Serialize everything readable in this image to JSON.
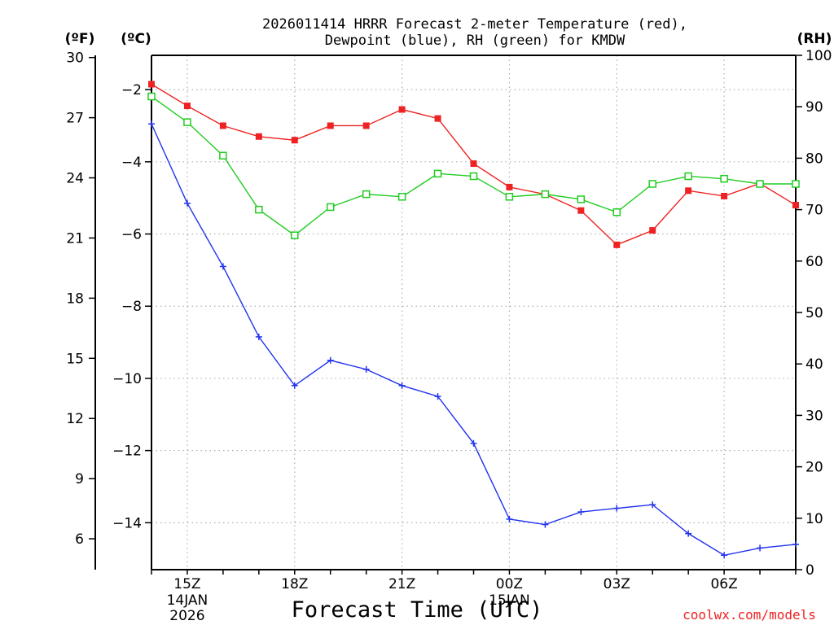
{
  "chart_data": {
    "type": "line",
    "title": [
      "2026011414 HRRR Forecast 2-meter Temperature (red),",
      "Dewpoint (blue), RH (green) for KMDW"
    ],
    "station": "KMDW",
    "model": "HRRR",
    "xlabel": "Forecast Time (UTC)",
    "x_ticks": [
      {
        "hour": 1,
        "label": "15Z",
        "sub": [
          "14JAN",
          "2026"
        ]
      },
      {
        "hour": 4,
        "label": "18Z",
        "sub": []
      },
      {
        "hour": 7,
        "label": "21Z",
        "sub": []
      },
      {
        "hour": 10,
        "label": "00Z",
        "sub": [
          "15JAN"
        ]
      },
      {
        "hour": 13,
        "label": "03Z",
        "sub": []
      },
      {
        "hour": 16,
        "label": "06Z",
        "sub": []
      }
    ],
    "x": [
      0,
      1,
      2,
      3,
      4,
      5,
      6,
      7,
      8,
      9,
      10,
      11,
      12,
      13,
      14,
      15,
      16,
      17,
      18
    ],
    "xlim": [
      0,
      18
    ],
    "axes": {
      "fahrenheit": {
        "label": "(ºF)",
        "ticks": [
          "30",
          "27",
          "24",
          "21",
          "18",
          "15",
          "12",
          "9",
          "6"
        ],
        "values": [
          30,
          27,
          24,
          21,
          18,
          15,
          12,
          9,
          6
        ]
      },
      "celsius": {
        "label": "(ºC)",
        "ticks": [
          "−2",
          "−4",
          "−6",
          "−8",
          "−10",
          "−12",
          "−14"
        ],
        "values": [
          -2,
          -4,
          -6,
          -8,
          -10,
          -12,
          -14
        ],
        "ylim": [
          -15.3,
          -1.05
        ]
      },
      "rh": {
        "label": "(RH)",
        "ticks": [
          "100",
          "90",
          "80",
          "70",
          "60",
          "50",
          "40",
          "30",
          "20",
          "10",
          "0"
        ],
        "values": [
          100,
          90,
          80,
          70,
          60,
          50,
          40,
          30,
          20,
          10,
          0
        ],
        "ylim": [
          0,
          100
        ]
      }
    },
    "series": [
      {
        "name": "Temperature",
        "unit": "°C",
        "axis": "celsius",
        "color": "#ee2222",
        "marker": "filled-square",
        "values": [
          -1.85,
          -2.45,
          -3.0,
          -3.3,
          -3.4,
          -3.0,
          -3.0,
          -2.55,
          -2.8,
          -4.05,
          -4.7,
          -4.9,
          -5.35,
          -6.3,
          -5.9,
          -4.8,
          -4.95,
          -4.6,
          -5.2
        ]
      },
      {
        "name": "Dewpoint",
        "unit": "°C",
        "axis": "celsius",
        "color": "#2233ee",
        "marker": "plus",
        "values": [
          -2.95,
          -5.15,
          -6.9,
          -8.85,
          -10.2,
          -9.5,
          -9.75,
          -10.2,
          -10.5,
          -11.8,
          -13.9,
          -14.05,
          -13.7,
          -13.6,
          -13.5,
          -14.3,
          -14.9,
          -14.7,
          -14.6
        ]
      },
      {
        "name": "RH",
        "unit": "%",
        "axis": "rh",
        "color": "#22cc22",
        "marker": "open-square",
        "values": [
          92.0,
          87.0,
          80.5,
          70.0,
          65.0,
          70.5,
          73.0,
          72.5,
          77.0,
          76.5,
          72.5,
          73.0,
          72.0,
          69.5,
          75.0,
          76.5,
          76.0,
          75.0,
          75.0
        ]
      }
    ],
    "grid": true
  },
  "credit": {
    "text": "coolwx.com/models",
    "color": "#ee2222"
  }
}
